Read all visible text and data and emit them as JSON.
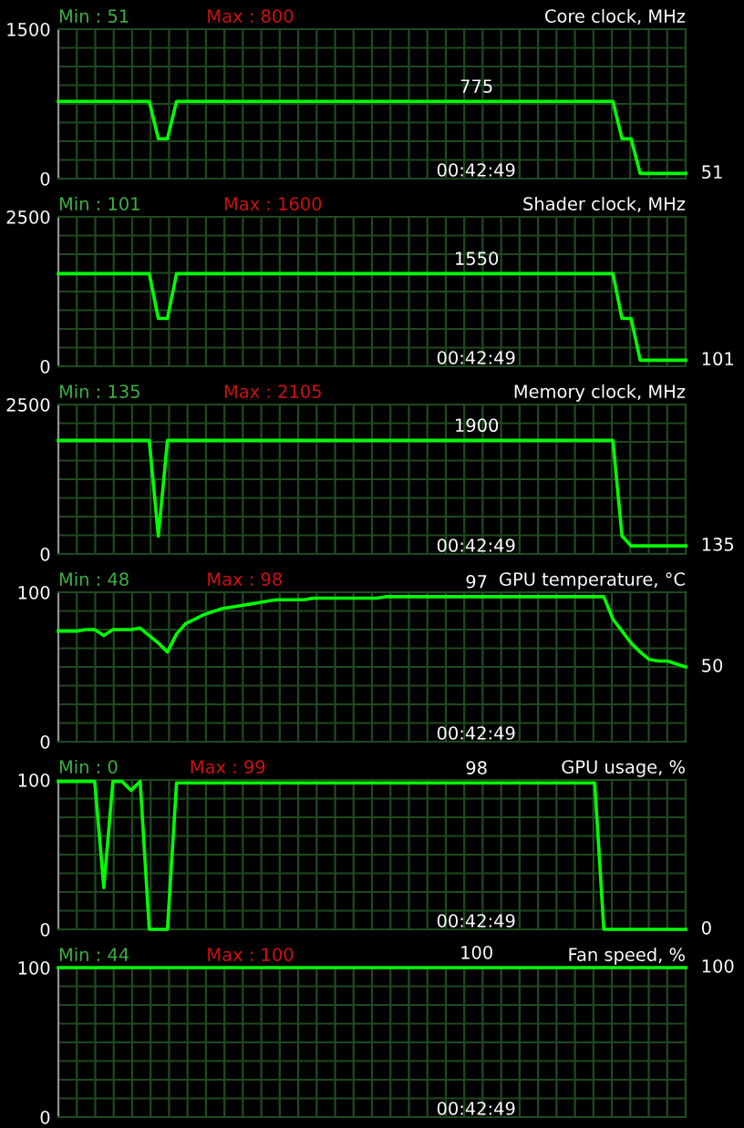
{
  "chart_data": [
    {
      "type": "line",
      "title": "Core clock, MHz",
      "categories": [
        null,
        null,
        null,
        null,
        null,
        null,
        null,
        null,
        null,
        null,
        null,
        null,
        null,
        null,
        null,
        null,
        null,
        null,
        null,
        null,
        null,
        null,
        null,
        null,
        null,
        null,
        null,
        null,
        null,
        null,
        null,
        null,
        null,
        null,
        null,
        null,
        null,
        null,
        null,
        null,
        null,
        null,
        null,
        null,
        null,
        null,
        null,
        null,
        null,
        null,
        null,
        null,
        null,
        null,
        null,
        null,
        null,
        null,
        null,
        null,
        null,
        null,
        null,
        null,
        null,
        null,
        null,
        null,
        null,
        null
      ],
      "series": [
        {
          "color": "#00ff00",
          "values": [
            775,
            775,
            775,
            775,
            775,
            775,
            775,
            775,
            775,
            775,
            775,
            400,
            400,
            775,
            775,
            775,
            775,
            775,
            775,
            775,
            775,
            775,
            775,
            775,
            775,
            775,
            775,
            775,
            775,
            775,
            775,
            775,
            775,
            775,
            775,
            775,
            775,
            775,
            775,
            775,
            775,
            775,
            775,
            775,
            775,
            775,
            775,
            775,
            775,
            775,
            775,
            775,
            775,
            775,
            775,
            775,
            775,
            775,
            775,
            775,
            775,
            775,
            400,
            400,
            51,
            51,
            51,
            51,
            51,
            51
          ]
        }
      ],
      "ylim": [
        0,
        1500
      ],
      "yticks": [
        0,
        1500
      ],
      "grid": true,
      "tick_labels": "y",
      "annotations": [
        "Min : 51",
        "Max : 800",
        "00:42:49",
        "775",
        "51"
      ]
    },
    {
      "type": "line",
      "title": "Shader clock, MHz",
      "categories": [
        null,
        null,
        null,
        null,
        null,
        null,
        null,
        null,
        null,
        null,
        null,
        null,
        null,
        null,
        null,
        null,
        null,
        null,
        null,
        null,
        null,
        null,
        null,
        null,
        null,
        null,
        null,
        null,
        null,
        null,
        null,
        null,
        null,
        null,
        null,
        null,
        null,
        null,
        null,
        null,
        null,
        null,
        null,
        null,
        null,
        null,
        null,
        null,
        null,
        null,
        null,
        null,
        null,
        null,
        null,
        null,
        null,
        null,
        null,
        null,
        null,
        null,
        null,
        null,
        null,
        null,
        null,
        null,
        null,
        null
      ],
      "series": [
        {
          "color": "#00ff00",
          "values": [
            1550,
            1550,
            1550,
            1550,
            1550,
            1550,
            1550,
            1550,
            1550,
            1550,
            1550,
            800,
            800,
            1550,
            1550,
            1550,
            1550,
            1550,
            1550,
            1550,
            1550,
            1550,
            1550,
            1550,
            1550,
            1550,
            1550,
            1550,
            1550,
            1550,
            1550,
            1550,
            1550,
            1550,
            1550,
            1550,
            1550,
            1550,
            1550,
            1550,
            1550,
            1550,
            1550,
            1550,
            1550,
            1550,
            1550,
            1550,
            1550,
            1550,
            1550,
            1550,
            1550,
            1550,
            1550,
            1550,
            1550,
            1550,
            1550,
            1550,
            1550,
            1550,
            800,
            800,
            101,
            101,
            101,
            101,
            101,
            101
          ]
        }
      ],
      "ylim": [
        0,
        2500
      ],
      "yticks": [
        0,
        2500
      ],
      "grid": true,
      "tick_labels": "y",
      "annotations": [
        "Min : 101",
        "Max : 1600",
        "00:42:49",
        "1550",
        "101"
      ]
    },
    {
      "type": "line",
      "title": "Memory clock, MHz",
      "categories": [
        null,
        null,
        null,
        null,
        null,
        null,
        null,
        null,
        null,
        null,
        null,
        null,
        null,
        null,
        null,
        null,
        null,
        null,
        null,
        null,
        null,
        null,
        null,
        null,
        null,
        null,
        null,
        null,
        null,
        null,
        null,
        null,
        null,
        null,
        null,
        null,
        null,
        null,
        null,
        null,
        null,
        null,
        null,
        null,
        null,
        null,
        null,
        null,
        null,
        null,
        null,
        null,
        null,
        null,
        null,
        null,
        null,
        null,
        null,
        null,
        null,
        null,
        null,
        null,
        null,
        null,
        null,
        null,
        null,
        null
      ],
      "series": [
        {
          "color": "#00ff00",
          "values": [
            1900,
            1900,
            1900,
            1900,
            1900,
            1900,
            1900,
            1900,
            1900,
            1900,
            1900,
            300,
            1900,
            1900,
            1900,
            1900,
            1900,
            1900,
            1900,
            1900,
            1900,
            1900,
            1900,
            1900,
            1900,
            1900,
            1900,
            1900,
            1900,
            1900,
            1900,
            1900,
            1900,
            1900,
            1900,
            1900,
            1900,
            1900,
            1900,
            1900,
            1900,
            1900,
            1900,
            1900,
            1900,
            1900,
            1900,
            1900,
            1900,
            1900,
            1900,
            1900,
            1900,
            1900,
            1900,
            1900,
            1900,
            1900,
            1900,
            1900,
            1900,
            1900,
            300,
            135,
            135,
            135,
            135,
            135,
            135,
            135
          ]
        }
      ],
      "ylim": [
        0,
        2500
      ],
      "yticks": [
        0,
        2500
      ],
      "grid": true,
      "tick_labels": "y",
      "annotations": [
        "Min : 135",
        "Max : 2105",
        "00:42:49",
        "1900",
        "135"
      ]
    },
    {
      "type": "line",
      "title": "GPU temperature, °C",
      "categories": [
        null,
        null,
        null,
        null,
        null,
        null,
        null,
        null,
        null,
        null,
        null,
        null,
        null,
        null,
        null,
        null,
        null,
        null,
        null,
        null,
        null,
        null,
        null,
        null,
        null,
        null,
        null,
        null,
        null,
        null,
        null,
        null,
        null,
        null,
        null,
        null,
        null,
        null,
        null,
        null,
        null,
        null,
        null,
        null,
        null,
        null,
        null,
        null,
        null,
        null,
        null,
        null,
        null,
        null,
        null,
        null,
        null,
        null,
        null,
        null,
        null,
        null,
        null,
        null,
        null,
        null,
        null,
        null,
        null,
        null
      ],
      "series": [
        {
          "color": "#00ff00",
          "values": [
            74,
            74,
            74,
            75,
            75,
            71,
            75,
            75,
            75,
            76,
            71,
            66,
            60,
            72,
            79,
            82,
            85,
            87,
            89,
            90,
            91,
            92,
            93,
            94,
            95,
            95,
            95,
            95,
            96,
            96,
            96,
            96,
            96,
            96,
            96,
            96,
            97,
            97,
            97,
            97,
            97,
            97,
            97,
            97,
            97,
            97,
            97,
            97,
            97,
            97,
            97,
            97,
            97,
            97,
            97,
            97,
            97,
            97,
            97,
            97,
            97,
            82,
            74,
            66,
            60,
            55,
            54,
            54,
            52,
            50
          ]
        }
      ],
      "ylim": [
        0,
        100
      ],
      "yticks": [
        0,
        100
      ],
      "grid": true,
      "tick_labels": "y",
      "annotations": [
        "Min : 48",
        "Max : 98",
        "00:42:49",
        "97",
        "50"
      ]
    },
    {
      "type": "line",
      "title": "GPU usage, %",
      "categories": [
        null,
        null,
        null,
        null,
        null,
        null,
        null,
        null,
        null,
        null,
        null,
        null,
        null,
        null,
        null,
        null,
        null,
        null,
        null,
        null,
        null,
        null,
        null,
        null,
        null,
        null,
        null,
        null,
        null,
        null,
        null,
        null,
        null,
        null,
        null,
        null,
        null,
        null,
        null,
        null,
        null,
        null,
        null,
        null,
        null,
        null,
        null,
        null,
        null,
        null,
        null,
        null,
        null,
        null,
        null,
        null,
        null,
        null,
        null,
        null,
        null,
        null,
        null,
        null,
        null,
        null,
        null,
        null,
        null,
        null
      ],
      "series": [
        {
          "color": "#00ff00",
          "values": [
            99,
            99,
            99,
            99,
            99,
            28,
            99,
            99,
            93,
            99,
            0,
            0,
            0,
            98,
            98,
            98,
            98,
            98,
            98,
            98,
            98,
            98,
            98,
            98,
            98,
            98,
            98,
            98,
            98,
            98,
            98,
            98,
            98,
            98,
            98,
            98,
            98,
            98,
            98,
            98,
            98,
            98,
            98,
            98,
            98,
            98,
            98,
            98,
            98,
            98,
            98,
            98,
            98,
            98,
            98,
            98,
            98,
            98,
            98,
            98,
            0,
            0,
            0,
            0,
            0,
            0,
            0,
            0,
            0,
            0
          ]
        }
      ],
      "ylim": [
        0,
        100
      ],
      "yticks": [
        0,
        100
      ],
      "grid": true,
      "tick_labels": "y",
      "annotations": [
        "Min : 0",
        "Max : 99",
        "00:42:49",
        "98",
        "0"
      ]
    },
    {
      "type": "line",
      "title": "Fan speed, %",
      "categories": [
        null,
        null,
        null,
        null,
        null,
        null,
        null,
        null,
        null,
        null,
        null,
        null,
        null,
        null,
        null,
        null,
        null,
        null,
        null,
        null,
        null,
        null,
        null,
        null,
        null,
        null,
        null,
        null,
        null,
        null,
        null,
        null,
        null,
        null,
        null,
        null,
        null,
        null,
        null,
        null,
        null,
        null,
        null,
        null,
        null,
        null,
        null,
        null,
        null,
        null,
        null,
        null,
        null,
        null,
        null,
        null,
        null,
        null,
        null,
        null,
        null,
        null,
        null,
        null,
        null,
        null,
        null,
        null,
        null,
        null
      ],
      "series": [
        {
          "color": "#00ff00",
          "values": [
            100,
            100,
            100,
            100,
            100,
            100,
            100,
            100,
            100,
            100,
            100,
            100,
            100,
            100,
            100,
            100,
            100,
            100,
            100,
            100,
            100,
            100,
            100,
            100,
            100,
            100,
            100,
            100,
            100,
            100,
            100,
            100,
            100,
            100,
            100,
            100,
            100,
            100,
            100,
            100,
            100,
            100,
            100,
            100,
            100,
            100,
            100,
            100,
            100,
            100,
            100,
            100,
            100,
            100,
            100,
            100,
            100,
            100,
            100,
            100,
            100,
            100,
            100,
            100,
            100,
            100,
            100,
            100,
            100,
            100
          ]
        }
      ],
      "ylim": [
        0,
        100
      ],
      "yticks": [
        0,
        100
      ],
      "grid": true,
      "tick_labels": "y",
      "annotations": [
        "Min : 44",
        "Max : 100",
        "00:42:49",
        "100",
        "100"
      ]
    }
  ]
}
